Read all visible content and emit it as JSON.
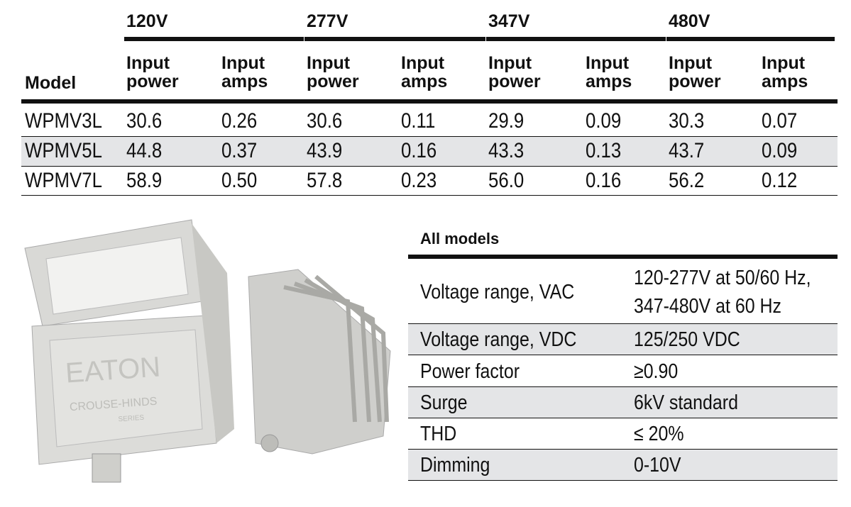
{
  "table": {
    "voltage_headers": [
      "120V",
      "277V",
      "347V",
      "480V"
    ],
    "model_header": "Model",
    "column_headers": [
      "Input power",
      "Input amps",
      "Input power",
      "Input amps",
      "Input power",
      "Input amps",
      "Input power",
      "Input amps"
    ],
    "rows": [
      [
        "WPMV3L",
        "30.6",
        "0.26",
        "30.6",
        "0.11",
        "29.9",
        "0.09",
        "30.3",
        "0.07"
      ],
      [
        "WPMV5L",
        "44.8",
        "0.37",
        "43.9",
        "0.16",
        "43.3",
        "0.13",
        "43.7",
        "0.09"
      ],
      [
        "WPMV7L",
        "58.9",
        "0.50",
        "57.8",
        "0.23",
        "56.0",
        "0.16",
        "56.2",
        "0.12"
      ]
    ]
  },
  "product_logo": {
    "brand": "EATON",
    "line": "CROUSE-HINDS",
    "series": "SERIES"
  },
  "all_models": {
    "title": "All models",
    "rows": [
      [
        "Voltage range, VAC",
        "120-277V at 50/60 Hz, 347-480V at 60 Hz"
      ],
      [
        "Voltage range, VDC",
        "125/250 VDC"
      ],
      [
        "Power factor",
        "≥0.90"
      ],
      [
        "Surge",
        "6kV standard"
      ],
      [
        "THD",
        "≤ 20%"
      ],
      [
        "Dimming",
        "0-10V"
      ]
    ]
  }
}
